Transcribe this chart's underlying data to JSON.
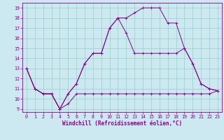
{
  "title": "",
  "xlabel": "Windchill (Refroidissement éolien,°C)",
  "background_color": "#cce8f0",
  "grid_color": "#88ccbb",
  "line_color": "#880088",
  "xlim": [
    -0.5,
    23.5
  ],
  "ylim": [
    8.7,
    19.5
  ],
  "xticks": [
    0,
    1,
    2,
    3,
    4,
    5,
    6,
    7,
    8,
    9,
    10,
    11,
    12,
    13,
    14,
    15,
    16,
    17,
    18,
    19,
    20,
    21,
    22,
    23
  ],
  "yticks": [
    9,
    10,
    11,
    12,
    13,
    14,
    15,
    16,
    17,
    18,
    19
  ],
  "series1_x": [
    0,
    1,
    2,
    3,
    4,
    5,
    6,
    7,
    8,
    9,
    10,
    11,
    12,
    13,
    14,
    15,
    16,
    17,
    18,
    19,
    20,
    21,
    22,
    23
  ],
  "series1_y": [
    13,
    11,
    10.5,
    10.5,
    9.0,
    9.5,
    10.5,
    10.5,
    10.5,
    10.5,
    10.5,
    10.5,
    10.5,
    10.5,
    10.5,
    10.5,
    10.5,
    10.5,
    10.5,
    10.5,
    10.5,
    10.5,
    10.5,
    10.8
  ],
  "series2_x": [
    0,
    1,
    2,
    3,
    4,
    5,
    6,
    7,
    8,
    9,
    10,
    11,
    12,
    13,
    14,
    15,
    16,
    17,
    18,
    19,
    20,
    21,
    22,
    23
  ],
  "series2_y": [
    13,
    11,
    10.5,
    10.5,
    9.0,
    10.5,
    11.5,
    13.5,
    14.5,
    14.5,
    17.0,
    18.0,
    16.5,
    14.5,
    14.5,
    14.5,
    14.5,
    14.5,
    14.5,
    15.0,
    13.5,
    11.5,
    11.0,
    10.8
  ],
  "series3_x": [
    0,
    1,
    2,
    3,
    4,
    5,
    6,
    7,
    8,
    9,
    10,
    11,
    12,
    13,
    14,
    15,
    16,
    17,
    18,
    19,
    20,
    21,
    22,
    23
  ],
  "series3_y": [
    13,
    11,
    10.5,
    10.5,
    9.0,
    10.5,
    11.5,
    13.5,
    14.5,
    14.5,
    17.0,
    18.0,
    18.0,
    18.5,
    19.0,
    19.0,
    19.0,
    17.5,
    17.5,
    15.0,
    13.5,
    11.5,
    11.0,
    10.8
  ],
  "xlabel_fontsize": 5.5,
  "tick_fontsize": 4.8,
  "linewidth": 0.7,
  "markersize": 2.5
}
